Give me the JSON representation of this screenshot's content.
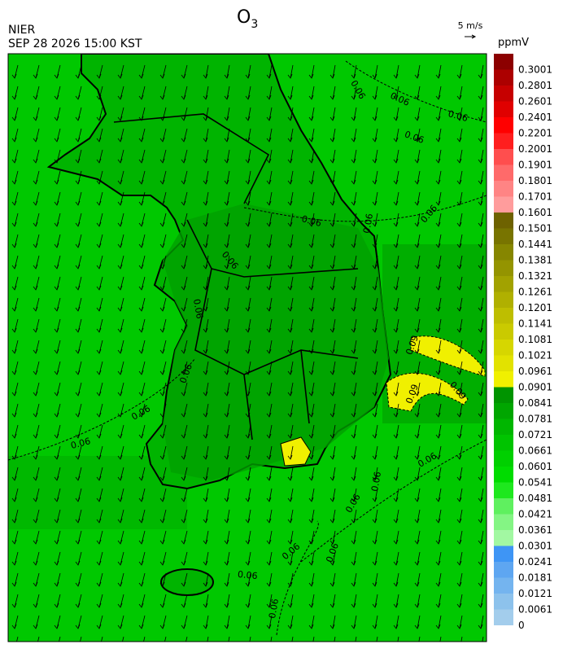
{
  "title": "O",
  "title_subscript": "3",
  "source": "NIER",
  "datetime": "SEP 28 2026 15:00 KST",
  "wind_scale": "5 m/s",
  "unit": "ppmV",
  "colorbar": {
    "levels": [
      0,
      0.0061,
      0.0121,
      0.0181,
      0.0241,
      0.0301,
      0.0361,
      0.0421,
      0.0481,
      0.0541,
      0.0601,
      0.0661,
      0.0721,
      0.0781,
      0.0841,
      0.0901,
      0.0961,
      0.1021,
      0.1081,
      0.1141,
      0.1201,
      0.1261,
      0.1321,
      0.1381,
      0.1441,
      0.1501,
      0.1601,
      0.1701,
      0.1801,
      0.1901,
      0.2001,
      0.2201,
      0.2401,
      0.2601,
      0.2801,
      0.3001
    ],
    "colors": [
      "#a3cdec",
      "#8dc2ec",
      "#74b4ef",
      "#5ea6f1",
      "#3e95f5",
      "#a2f8a2",
      "#84f584",
      "#5ff05f",
      "#1ee81e",
      "#00dc00",
      "#00d000",
      "#00c400",
      "#00b600",
      "#00a600",
      "#009400",
      "#f0f000",
      "#e2e200",
      "#d6d600",
      "#caca00",
      "#bebe00",
      "#b0b000",
      "#a2a200",
      "#949400",
      "#868600",
      "#787400",
      "#6e6200",
      "#ff9c9c",
      "#ff8484",
      "#ff6a6a",
      "#ff4e4e",
      "#ff1e1e",
      "#ff0000",
      "#e00000",
      "#c60000",
      "#ac0000",
      "#8c0000"
    ]
  },
  "contour_labels": [
    "0.06",
    "0.06",
    "0.06",
    "0.06",
    "0.06",
    "0.06",
    "0.06",
    "0.06",
    "0.06",
    "0.06",
    "0.06",
    "0.06",
    "0.06",
    "0.06",
    "0.06",
    "0.06",
    "0.06",
    "0.06",
    "0.06",
    "0.09",
    "0.09",
    "0.09"
  ]
}
